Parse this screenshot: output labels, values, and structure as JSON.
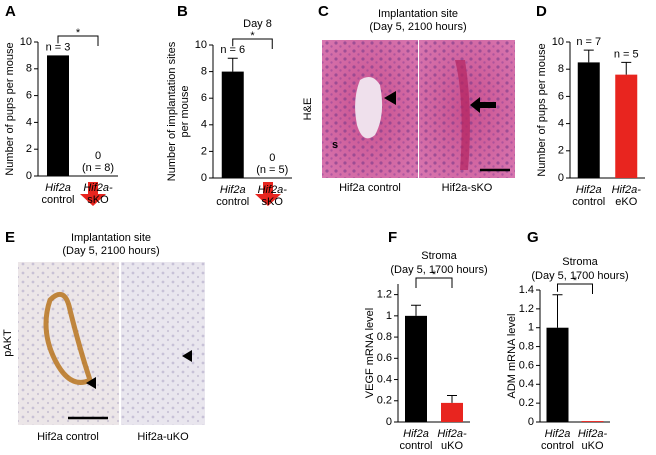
{
  "chart_data": [
    {
      "type": "bar",
      "panel": "A",
      "ylabel": [
        "Number of pups per mouse"
      ],
      "categories": [
        [
          "Hif2a",
          "control"
        ],
        [
          "Hif2a-",
          "sKO"
        ]
      ],
      "values": [
        9,
        0
      ],
      "colors": [
        "#000000",
        "#e8251f"
      ],
      "bar_labels": [
        [
          "n = 3"
        ],
        [
          "0",
          "(n = 8)"
        ]
      ],
      "significance": "*",
      "ylim": [
        0,
        10
      ],
      "yticks": [
        0,
        2,
        4,
        6,
        8,
        10
      ]
    },
    {
      "type": "bar",
      "panel": "B",
      "title": [
        "Day 8"
      ],
      "ylabel": [
        "Number of implantation sites",
        "per mouse"
      ],
      "categories": [
        [
          "Hif2a",
          "control"
        ],
        [
          "Hif2a-",
          "sKO"
        ]
      ],
      "values": [
        8,
        0
      ],
      "errors": [
        1,
        null
      ],
      "colors": [
        "#000000",
        "#e8251f"
      ],
      "bar_labels": [
        [
          "n = 6"
        ],
        [
          "0",
          "(n = 5)"
        ]
      ],
      "significance": "*",
      "ylim": [
        0,
        10
      ],
      "yticks": [
        0,
        2,
        4,
        6,
        8,
        10
      ]
    },
    {
      "type": "bar",
      "panel": "D",
      "ylabel": [
        "Number of pups per mouse"
      ],
      "categories": [
        [
          "Hif2a",
          "control"
        ],
        [
          "Hif2a-",
          "eKO"
        ]
      ],
      "values": [
        8.5,
        7.6
      ],
      "errors": [
        0.9,
        0.9
      ],
      "colors": [
        "#000000",
        "#e8251f"
      ],
      "bar_labels": [
        [
          "n = 7"
        ],
        [
          "n = 5"
        ]
      ],
      "ylim": [
        0,
        10
      ],
      "yticks": [
        0,
        2,
        4,
        6,
        8,
        10
      ]
    },
    {
      "type": "bar",
      "panel": "F",
      "title": [
        "Stroma",
        "(Day 5, 1700 hours)"
      ],
      "ylabel": [
        "VEGF mRNA level"
      ],
      "categories": [
        [
          "Hif2a",
          "control"
        ],
        [
          "Hif2a-",
          "uKO"
        ]
      ],
      "values": [
        1,
        0.18
      ],
      "errors": [
        0.1,
        0.07
      ],
      "colors": [
        "#000000",
        "#e8251f"
      ],
      "significance": "*",
      "ylim": [
        0,
        1.3
      ],
      "yticks": [
        0,
        0.2,
        0.4,
        0.6,
        0.8,
        1,
        1.2
      ]
    },
    {
      "type": "bar",
      "panel": "G",
      "title": [
        "Stroma",
        "(Day 5, 1700 hours)"
      ],
      "ylabel": [
        "ADM mRNA level"
      ],
      "categories": [
        [
          "Hif2a",
          "control"
        ],
        [
          "Hif2a-",
          "uKO"
        ]
      ],
      "values": [
        1,
        0.01
      ],
      "errors": [
        0.35,
        null
      ],
      "colors": [
        "#000000",
        "#e8251f"
      ],
      "significance": "*",
      "ylim": [
        0,
        1.4
      ],
      "yticks": [
        0,
        0.2,
        0.4,
        0.6,
        0.8,
        1,
        1.2,
        1.4
      ]
    }
  ],
  "images": [
    {
      "panel": "C",
      "title": [
        "Implantation site",
        "(Day 5, 2100 hours)"
      ],
      "side_label": "H&E",
      "marker": "s",
      "captions": [
        "Hif2a control",
        "Hif2a-sKO"
      ]
    },
    {
      "panel": "E",
      "title": [
        "Implantation site",
        "(Day 5, 2100 hours)"
      ],
      "side_label": "pAKT",
      "captions": [
        "Hif2a control",
        "Hif2a-uKO"
      ]
    }
  ]
}
